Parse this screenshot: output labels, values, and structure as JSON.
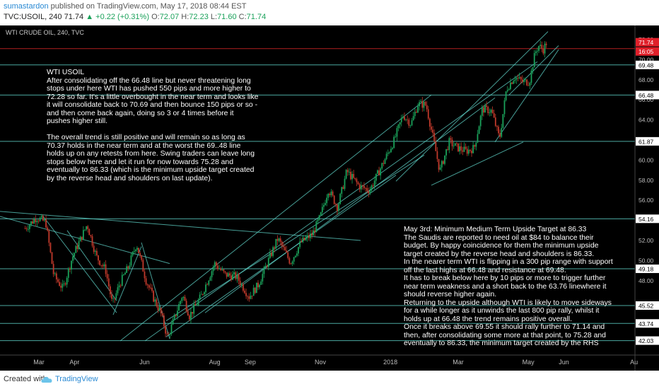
{
  "header": {
    "author": "sumastardon",
    "published_text": "published on TradingView.com, May 17, 2018 08:44 EST",
    "symbol": "TVC:USOIL, 240",
    "last": "71.74",
    "change_arrow": "▲",
    "change": "+0.22 (+0.31%)",
    "ohlc": {
      "o_label": "O:",
      "o": "72.07",
      "h_label": "H:",
      "h": "72.23",
      "l_label": "L:",
      "l": "71.60",
      "c_label": "C:",
      "c": "71.74"
    }
  },
  "footer": {
    "created_with": "Created with",
    "brand": "TradingView"
  },
  "colors": {
    "background": "#000000",
    "candle_up": "#1aa15a",
    "candle_down": "#c0392b",
    "line": "#5fd3c8",
    "price_tag_red": "#e0202a",
    "level_tag": "#ffffff"
  },
  "notes": {
    "note1": {
      "title": "WTI   USOIL",
      "p1": "After consolidating off the 66.48 line but never threatening long stops under here WTI has pushed 550 pips and more higher to 72.28 so far. It's a little overbought in the near term and looks like it will consolidate back to 70.69 and then bounce 150 pips or so - and then come back again, doing so 3 or 4 times before it pushes higher still.",
      "p2": "The overall trend is still positive and will remain so as long as 70.37 holds in the near term and at the worst the 69..48 line holds up on any retests from here. Swing traders can leave long stops below here and let it run for now towards 75.28 and eventually to 86.33 (which is the minimum upside target created by the reverse head and shoulders on last update)."
    },
    "note2": {
      "p1": "May 3rd: Minimum Medium Term Upside Target at 86.33",
      "p2": "The Saudis are reported to need oil at $84 to balance their budget. By happy coincidence for them the minimum upside target created by the reverse head and shoulders is 86.33.",
      "p3": "In the nearer term WTI is flipping in a 300 pip range with support off the last highs at 66.48 and resistance at 69.48.",
      "p4": "It has to break below here by 10 pips or more to trigger further near term weakness and a short back to the 63.76 linewhere it should reverse higher again.",
      "p5": "Returning to the upside although WTI is likely to move sideways for a while longer as it unwinds the last 800 pip rally, whilst it holds up at 66.48 the trend remains positive overall.",
      "p6": "Once it breaks above 69.55 it should rally further to 71.14 and then, after consolidating some more at that point, to 75.28 and eventually to 86.33, the minimum target created by the RHS"
    }
  },
  "chart_data": {
    "type": "candlestick",
    "title": "WTI CRUDE OIL, 240, TVC",
    "x_ticks": [
      "Mar",
      "Apr",
      "Jun",
      "Aug",
      "Sep",
      "Nov",
      "2018",
      "Mar",
      "May",
      "Jun",
      "Au"
    ],
    "y_ticks": [
      48.0,
      50.0,
      52.0,
      54.0,
      56.0,
      58.0,
      60.0,
      62.0,
      64.0,
      66.0,
      68.0,
      70.0,
      72.0
    ],
    "ylim": [
      41.5,
      73.2
    ],
    "tagged_levels": [
      "69.48",
      "66.48",
      "61.87",
      "54.16",
      "49.18",
      "45.52",
      "43.74",
      "42.03"
    ],
    "last_price_tag": "71.74",
    "countdown_tag": "16:05",
    "hidden_labels": [
      "70.37",
      "72.23"
    ],
    "path": [
      [
        "Feb-17",
        53.2
      ],
      [
        "Feb-27",
        54.3
      ],
      [
        "Mar-07",
        53.8
      ],
      [
        "Mar-14",
        48.5
      ],
      [
        "Mar-22",
        47.2
      ],
      [
        "Mar-30",
        50.3
      ],
      [
        "Apr-12",
        53.6
      ],
      [
        "Apr-20",
        50.4
      ],
      [
        "Apr-28",
        49.1
      ],
      [
        "May-04",
        45.6
      ],
      [
        "May-10",
        47.6
      ],
      [
        "May-18",
        49.4
      ],
      [
        "May-25",
        51.7
      ],
      [
        "Jun-02",
        48.1
      ],
      [
        "Jun-09",
        46.2
      ],
      [
        "Jun-15",
        44.8
      ],
      [
        "Jun-21",
        42.3
      ],
      [
        "Jun-28",
        44.6
      ],
      [
        "Jul-04",
        46.6
      ],
      [
        "Jul-10",
        44.5
      ],
      [
        "Jul-20",
        46.4
      ],
      [
        "Aug-01",
        49.7
      ],
      [
        "Aug-10",
        48.6
      ],
      [
        "Aug-20",
        48.4
      ],
      [
        "Aug-31",
        46.4
      ],
      [
        "Sep-08",
        47.6
      ],
      [
        "Sep-16",
        49.8
      ],
      [
        "Sep-25",
        52.2
      ],
      [
        "Oct-06",
        49.8
      ],
      [
        "Oct-15",
        51.8
      ],
      [
        "Oct-25",
        52.6
      ],
      [
        "Nov-01",
        54.4
      ],
      [
        "Nov-08",
        57.1
      ],
      [
        "Nov-16",
        55.3
      ],
      [
        "Nov-24",
        58.9
      ],
      [
        "Dec-05",
        57.4
      ],
      [
        "Dec-14",
        57.0
      ],
      [
        "Dec-26",
        59.8
      ],
      [
        "Jan-04",
        61.9
      ],
      [
        "Jan-12",
        64.5
      ],
      [
        "Jan-19",
        63.6
      ],
      [
        "Jan-25",
        65.6
      ],
      [
        "Feb-01",
        65.5
      ],
      [
        "Feb-07",
        62.3
      ],
      [
        "Feb-13",
        58.9
      ],
      [
        "Feb-21",
        61.8
      ],
      [
        "Mar-01",
        61.2
      ],
      [
        "Mar-08",
        60.9
      ],
      [
        "Mar-15",
        61.2
      ],
      [
        "Mar-22",
        65.1
      ],
      [
        "Mar-30",
        64.9
      ],
      [
        "Apr-06",
        62.1
      ],
      [
        "Apr-12",
        67.1
      ],
      [
        "Apr-19",
        68.3
      ],
      [
        "Apr-26",
        67.8
      ],
      [
        "May-02",
        67.8
      ],
      [
        "May-07",
        70.7
      ],
      [
        "May-10",
        71.4
      ],
      [
        "May-14",
        71.0
      ],
      [
        "May-17",
        71.74
      ]
    ]
  }
}
